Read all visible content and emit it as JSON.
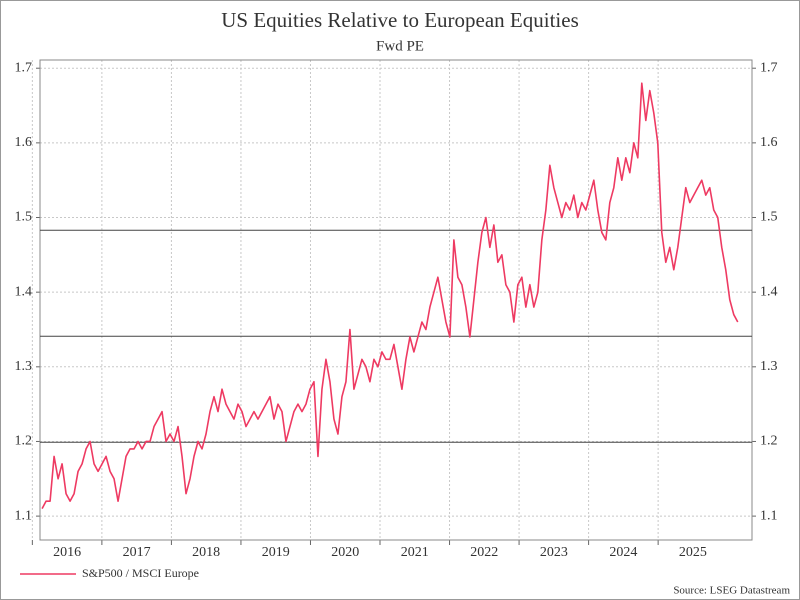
{
  "chart_data": {
    "type": "line",
    "title": "US Equities Relative to European Equities",
    "subtitle": "Fwd PE",
    "source": "Source: LSEG Datastream",
    "legend": "bottom-left",
    "grid": true,
    "xlim": [
      2016.11,
      2026.35
    ],
    "xticks": [
      2016,
      2017,
      2018,
      2019,
      2020,
      2021,
      2022,
      2023,
      2024,
      2025
    ],
    "ylim": [
      1.068,
      1.711
    ],
    "yticks": [
      1.1,
      1.2,
      1.3,
      1.4,
      1.5,
      1.6,
      1.7
    ],
    "y2lim": [
      1.068,
      1.711
    ],
    "y2ticks": [
      1.1,
      1.2,
      1.3,
      1.4,
      1.5,
      1.6,
      1.7
    ],
    "reference_lines": [
      1.483,
      1.341,
      1.199
    ],
    "reference_color": "#444444",
    "x": [
      2016.14,
      2016.1975,
      2016.255,
      2016.3125,
      2016.37,
      2016.4275,
      2016.485,
      2016.5425,
      2016.6,
      2016.6575,
      2016.715,
      2016.7725,
      2016.83,
      2016.8875,
      2016.945,
      2017.0025,
      2017.06,
      2017.1175,
      2017.175,
      2017.2325,
      2017.29,
      2017.3475,
      2017.405,
      2017.4625,
      2017.52,
      2017.5775,
      2017.635,
      2017.6925,
      2017.75,
      2017.8075,
      2017.865,
      2017.9225,
      2017.98,
      2018.0375,
      2018.095,
      2018.1525,
      2018.21,
      2018.2675,
      2018.325,
      2018.3825,
      2018.44,
      2018.4975,
      2018.555,
      2018.6125,
      2018.67,
      2018.7275,
      2018.785,
      2018.8425,
      2018.9,
      2018.9575,
      2019.015,
      2019.0725,
      2019.13,
      2019.1875,
      2019.245,
      2019.3025,
      2019.36,
      2019.4175,
      2019.475,
      2019.5325,
      2019.59,
      2019.6475,
      2019.705,
      2019.7625,
      2019.82,
      2019.8775,
      2019.935,
      2019.9925,
      2020.05,
      2020.1075,
      2020.165,
      2020.2225,
      2020.28,
      2020.3375,
      2020.395,
      2020.4525,
      2020.51,
      2020.5675,
      2020.625,
      2020.6825,
      2020.74,
      2020.7975,
      2020.855,
      2020.9125,
      2020.97,
      2021.0275,
      2021.085,
      2021.1425,
      2021.2,
      2021.2575,
      2021.315,
      2021.3725,
      2021.43,
      2021.4875,
      2021.545,
      2021.6025,
      2021.66,
      2021.7175,
      2021.775,
      2021.8325,
      2021.89,
      2021.9475,
      2022.005,
      2022.0625,
      2022.12,
      2022.1775,
      2022.235,
      2022.2925,
      2022.35,
      2022.4075,
      2022.465,
      2022.5225,
      2022.58,
      2022.6375,
      2022.695,
      2022.7525,
      2022.81,
      2022.8675,
      2022.925,
      2022.9825,
      2023.04,
      2023.0975,
      2023.155,
      2023.2125,
      2023.27,
      2023.3275,
      2023.385,
      2023.4425,
      2023.5,
      2023.5575,
      2023.615,
      2023.6725,
      2023.73,
      2023.7875,
      2023.845,
      2023.9025,
      2023.96,
      2024.0175,
      2024.075,
      2024.1325,
      2024.19,
      2024.2475,
      2024.305,
      2024.3625,
      2024.42,
      2024.4775,
      2024.535,
      2024.5925,
      2024.65,
      2024.7075,
      2024.765,
      2024.8225,
      2024.88,
      2024.9375,
      2024.995,
      2025.0525,
      2025.11,
      2025.1675,
      2025.225,
      2025.2825,
      2025.34,
      2025.3975,
      2025.455,
      2025.5125,
      2025.57,
      2025.6275,
      2025.685,
      2025.7425,
      2025.8,
      2025.8575,
      2025.915,
      2025.9725,
      2026.03,
      2026.0875,
      2026.145
    ],
    "series": [
      {
        "name": "S&P500 / MSCI Europe",
        "color": "#ee3a62",
        "values": [
          1.11,
          1.12,
          1.12,
          1.18,
          1.15,
          1.17,
          1.13,
          1.12,
          1.13,
          1.16,
          1.17,
          1.19,
          1.2,
          1.17,
          1.16,
          1.17,
          1.18,
          1.16,
          1.15,
          1.12,
          1.15,
          1.18,
          1.19,
          1.19,
          1.2,
          1.19,
          1.2,
          1.2,
          1.22,
          1.23,
          1.24,
          1.2,
          1.21,
          1.2,
          1.22,
          1.18,
          1.13,
          1.15,
          1.18,
          1.2,
          1.19,
          1.21,
          1.24,
          1.26,
          1.24,
          1.27,
          1.25,
          1.24,
          1.23,
          1.25,
          1.24,
          1.22,
          1.23,
          1.24,
          1.23,
          1.24,
          1.25,
          1.26,
          1.23,
          1.25,
          1.24,
          1.2,
          1.22,
          1.24,
          1.25,
          1.24,
          1.25,
          1.27,
          1.28,
          1.18,
          1.27,
          1.31,
          1.28,
          1.23,
          1.21,
          1.26,
          1.28,
          1.35,
          1.27,
          1.29,
          1.31,
          1.3,
          1.28,
          1.31,
          1.3,
          1.32,
          1.31,
          1.31,
          1.33,
          1.3,
          1.27,
          1.31,
          1.34,
          1.32,
          1.34,
          1.36,
          1.35,
          1.38,
          1.4,
          1.42,
          1.39,
          1.36,
          1.34,
          1.47,
          1.42,
          1.41,
          1.38,
          1.34,
          1.39,
          1.44,
          1.48,
          1.5,
          1.46,
          1.49,
          1.44,
          1.45,
          1.41,
          1.4,
          1.36,
          1.41,
          1.42,
          1.38,
          1.41,
          1.38,
          1.4,
          1.47,
          1.51,
          1.57,
          1.54,
          1.52,
          1.5,
          1.52,
          1.51,
          1.53,
          1.5,
          1.52,
          1.51,
          1.53,
          1.55,
          1.51,
          1.48,
          1.47,
          1.52,
          1.54,
          1.58,
          1.55,
          1.58,
          1.56,
          1.6,
          1.58,
          1.68,
          1.63,
          1.67,
          1.64,
          1.6,
          1.48,
          1.44,
          1.46,
          1.43,
          1.46,
          1.5,
          1.54,
          1.52,
          1.53,
          1.54,
          1.55,
          1.53,
          1.54,
          1.51,
          1.5,
          1.46,
          1.43,
          1.39,
          1.37,
          1.36
        ]
      }
    ]
  }
}
